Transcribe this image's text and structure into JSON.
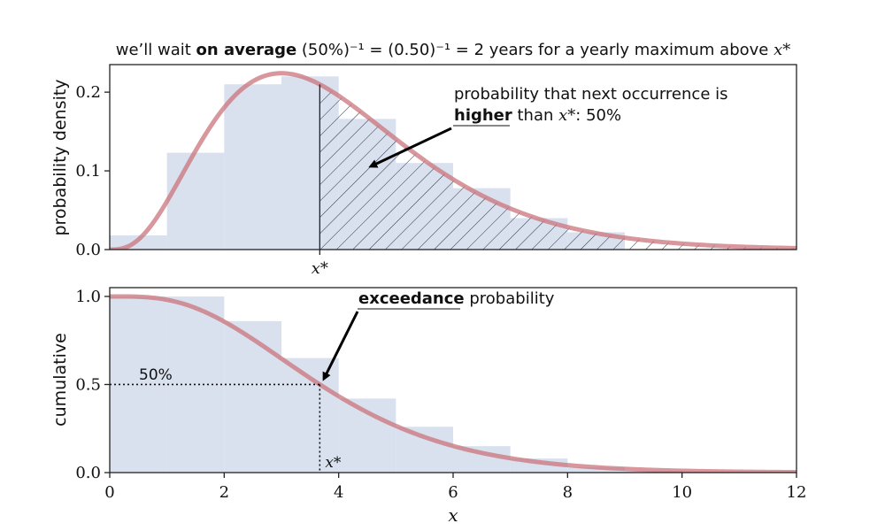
{
  "figure": {
    "title": {
      "prefix": "we’ll wait ",
      "bold": "on average",
      "formula": " (50%)⁻¹ = (0.50)⁻¹ = 2 years for a yearly maximum above ",
      "var": "x*"
    },
    "top_annotation": {
      "line1": "probability that next occurrence is",
      "bold": "higher",
      "line2_rest": " than ",
      "var": "x*",
      "suffix": ": 50%"
    },
    "bottom_annotation": {
      "bold": "exceedance",
      "rest": " probability"
    },
    "label_50": "50%",
    "xstar_tick": "x*",
    "xstar_label": "x*"
  },
  "chart_data": [
    {
      "type": "bar",
      "id": "density",
      "ylabel": "probability density",
      "xlabel": "",
      "xlim": [
        0,
        12
      ],
      "ylim": [
        0,
        0.235
      ],
      "yticks": [
        0,
        0.1,
        0.2
      ],
      "ytick_labels": [
        "0.0",
        "0.1",
        "0.2"
      ],
      "bin_width": 1,
      "bins": [
        0,
        1,
        2,
        3,
        4,
        5,
        6,
        7,
        8
      ],
      "values": [
        0.018,
        0.123,
        0.21,
        0.22,
        0.166,
        0.11,
        0.078,
        0.04,
        0.022
      ],
      "curve": {
        "type": "line",
        "distribution": "gamma",
        "shape": 4,
        "scale": 1,
        "x_range": [
          0,
          12
        ]
      },
      "shaded_region": {
        "from": 3.67,
        "to": 12,
        "pattern": "hatch",
        "probability": 0.5
      },
      "x_star": 3.67,
      "colors": {
        "bars": "#d9e0ee",
        "curve": "#c9747b",
        "hatch": "#2a3245",
        "axis": "#222222"
      }
    },
    {
      "type": "bar",
      "id": "cumulative",
      "ylabel": "cumulative",
      "xlabel": "x",
      "xlim": [
        0,
        12
      ],
      "ylim": [
        0,
        1.05
      ],
      "yticks": [
        0,
        0.5,
        1.0
      ],
      "ytick_labels": [
        "0.0",
        "0.5",
        "1.0"
      ],
      "xticks": [
        0,
        2,
        4,
        6,
        8,
        10,
        12
      ],
      "xtick_labels": [
        "0",
        "2",
        "4",
        "6",
        "8",
        "10",
        "12"
      ],
      "bin_width": 1,
      "bins": [
        0,
        1,
        2,
        3,
        4,
        5,
        6,
        7,
        8,
        9
      ],
      "values": [
        1.0,
        1.0,
        0.86,
        0.65,
        0.42,
        0.26,
        0.15,
        0.08,
        0.03,
        0.01
      ],
      "curve": {
        "type": "line",
        "distribution": "gamma_survival",
        "shape": 4,
        "scale": 1,
        "x_range": [
          0,
          12
        ]
      },
      "reference": {
        "x": 3.67,
        "y": 0.5
      },
      "colors": {
        "bars": "#d9e0ee",
        "curve": "#c9747b",
        "axis": "#222222"
      }
    }
  ]
}
